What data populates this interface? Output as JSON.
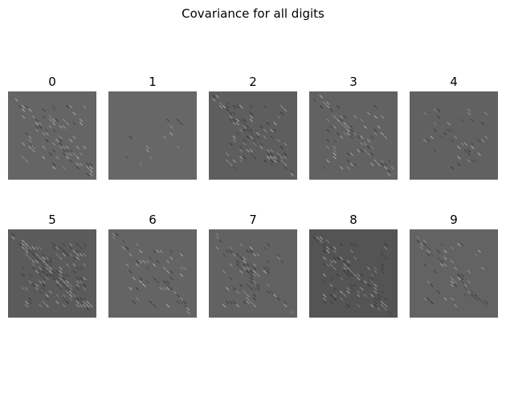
{
  "chart_data": {
    "type": "heatmap",
    "title": "Covariance for all digits",
    "layout": {
      "rows": 2,
      "cols": 5
    },
    "colormap": "gray",
    "axes_visible": false,
    "panels": [
      {
        "label": "0",
        "background": "#656565",
        "pattern": "corners-and-diagonal",
        "intensity": 0.55
      },
      {
        "label": "1",
        "background": "#676767",
        "pattern": "faint",
        "intensity": 0.12
      },
      {
        "label": "2",
        "background": "#5e5e5e",
        "pattern": "diagonal",
        "intensity": 0.55
      },
      {
        "label": "3",
        "background": "#626262",
        "pattern": "diagonal",
        "intensity": 0.5
      },
      {
        "label": "4",
        "background": "#616161",
        "pattern": "center-diagonal",
        "intensity": 0.45
      },
      {
        "label": "5",
        "background": "#5b5b5b",
        "pattern": "diagonal-strong",
        "intensity": 0.7
      },
      {
        "label": "6",
        "background": "#646464",
        "pattern": "diagonal",
        "intensity": 0.35
      },
      {
        "label": "7",
        "background": "#626262",
        "pattern": "upper-diagonal",
        "intensity": 0.5
      },
      {
        "label": "8",
        "background": "#545454",
        "pattern": "diagonal",
        "intensity": 0.5
      },
      {
        "label": "9",
        "background": "#636363",
        "pattern": "diagonal",
        "intensity": 0.35
      }
    ]
  }
}
